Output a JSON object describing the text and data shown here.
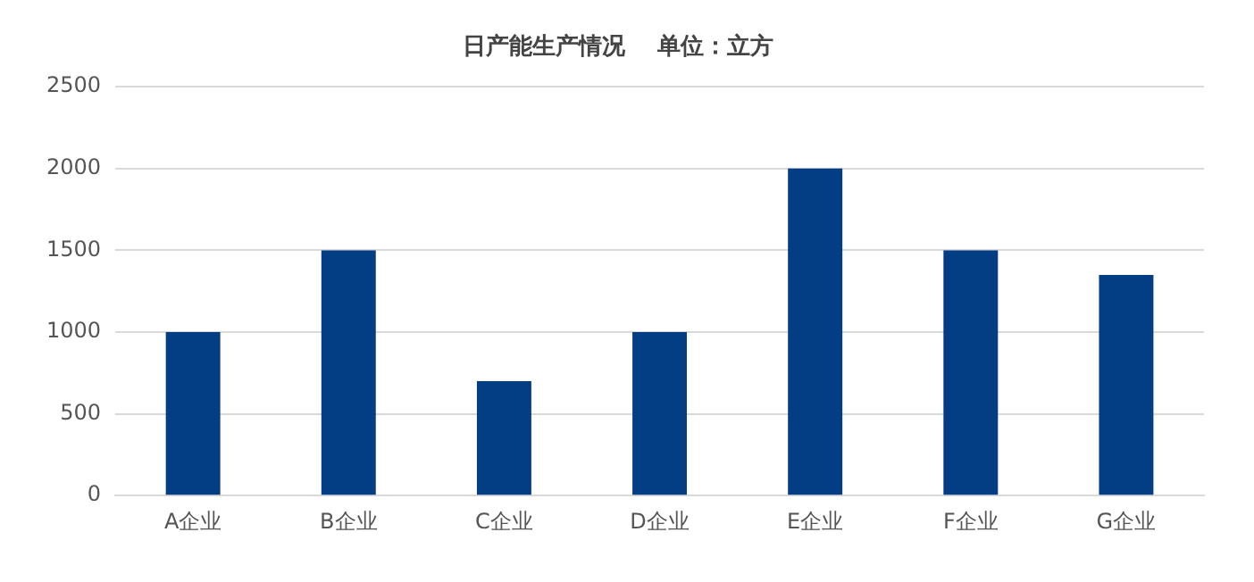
{
  "chart_data": {
    "type": "bar",
    "title": "日产能生产情况    单位：立方",
    "categories": [
      "A企业",
      "B企业",
      "C企业",
      "D企业",
      "E企业",
      "F企业",
      "G企业"
    ],
    "values": [
      1000,
      1500,
      700,
      1000,
      2000,
      1500,
      1350
    ],
    "color": "#033d84",
    "ylim": [
      0,
      2500
    ],
    "yticks": [
      0,
      500,
      1000,
      1500,
      2000,
      2500
    ],
    "grid": "y"
  }
}
